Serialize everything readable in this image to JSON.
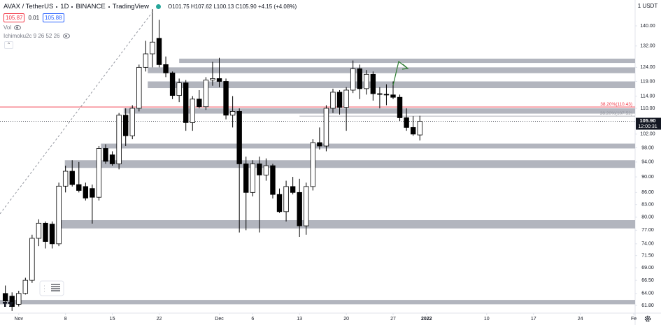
{
  "header": {
    "symbol": "AVAX / TetherUS",
    "interval": "1D",
    "exchange": "BINANCE",
    "source": "TradingView",
    "ohlc": "O101.75 H107.62 L100.13 C105.90 +4.15 (+4.08%)",
    "bid": "105.87",
    "spread": "0.01",
    "ask": "105.88"
  },
  "indicators": [
    "Vol",
    "Ichimoku2c 9 26 52 26"
  ],
  "chart_data": {
    "type": "candlestick",
    "currency": "1 USDT",
    "open": [
      64.0,
      63.5,
      62.0,
      64.0,
      66.5,
      75.2,
      78.6,
      78.4,
      74.0,
      87.6,
      91.5,
      88.0,
      87.5,
      87.0,
      84.8,
      97.8,
      96.0,
      93.5,
      107.8,
      101.5,
      110.0,
      124.0,
      129.0,
      135.0,
      125.0,
      122.0,
      114.2,
      118.5,
      105.5,
      113.0,
      110.5,
      119.5,
      120.0,
      119.0,
      107.8,
      109.0,
      93.5,
      86.0,
      93.5,
      90.5,
      93.0,
      85.5,
      81.3,
      87.5,
      86.0,
      78.0,
      87.5,
      99.5,
      98.5,
      110.0,
      115.3,
      110.3,
      116.0,
      123.5,
      116.5,
      121.5,
      114.8,
      114.6,
      114.4,
      113.6,
      107.0,
      104.0,
      101.75
    ],
    "high": [
      65.5,
      64.2,
      64.5,
      67.0,
      76.0,
      79.5,
      79.0,
      79.0,
      88.5,
      93.0,
      94.5,
      94.0,
      88.5,
      88.0,
      98.5,
      99.0,
      97.0,
      108.5,
      110.0,
      111.0,
      125.0,
      134.0,
      147.0,
      142.5,
      128.0,
      122.5,
      120.0,
      119.5,
      114.0,
      116.0,
      120.5,
      126.0,
      127.5,
      120.0,
      114.0,
      110.0,
      95.5,
      94.5,
      95.5,
      95.0,
      93.5,
      87.0,
      89.0,
      90.0,
      89.5,
      88.5,
      100.5,
      104.0,
      111.0,
      116.5,
      116.0,
      117.0,
      126.5,
      125.0,
      123.0,
      122.5,
      117.0,
      118.0,
      119.0,
      114.5,
      110.0,
      107.5,
      107.62
    ],
    "low": [
      62.3,
      60.8,
      61.6,
      63.8,
      66.0,
      73.5,
      73.0,
      73.0,
      73.5,
      86.0,
      87.5,
      86.0,
      84.0,
      78.5,
      84.0,
      93.5,
      93.0,
      92.0,
      98.5,
      100.5,
      109.0,
      122.5,
      124.0,
      124.0,
      120.5,
      113.0,
      112.0,
      103.0,
      103.0,
      110.0,
      109.5,
      117.5,
      117.0,
      106.5,
      104.0,
      76.5,
      77.0,
      85.0,
      76.5,
      89.0,
      84.5,
      81.0,
      79.0,
      85.5,
      75.5,
      76.0,
      86.5,
      97.5,
      97.0,
      108.5,
      108.0,
      103.0,
      115.0,
      113.0,
      114.5,
      112.5,
      110.0,
      111.0,
      113.0,
      106.0,
      103.0,
      101.5,
      100.13
    ],
    "close": [
      62.6,
      61.6,
      64.0,
      66.5,
      75.2,
      78.6,
      74.5,
      74.0,
      87.6,
      91.5,
      88.0,
      86.5,
      84.6,
      84.8,
      97.8,
      94.2,
      93.5,
      107.8,
      101.5,
      110.0,
      124.0,
      129.0,
      133.5,
      125.0,
      122.0,
      114.2,
      118.5,
      105.5,
      113.0,
      110.5,
      119.5,
      120.0,
      119.0,
      107.8,
      109.0,
      93.5,
      86.0,
      93.5,
      90.5,
      93.0,
      85.5,
      81.3,
      87.5,
      86.0,
      78.0,
      87.5,
      99.5,
      98.5,
      110.0,
      115.3,
      110.3,
      116.0,
      123.5,
      116.5,
      121.5,
      114.8,
      114.6,
      114.4,
      113.6,
      107.0,
      104.0,
      102.0,
      105.9
    ],
    "up_color": "#ffffff",
    "down_color": "#000000",
    "wick_color": "#000000",
    "log_scale": true,
    "xlim": [
      -0.8,
      94.2
    ],
    "xticks": [
      {
        "value": 2,
        "label": "Nov"
      },
      {
        "value": 9,
        "label": "8"
      },
      {
        "value": 16,
        "label": "15"
      },
      {
        "value": 23,
        "label": "22"
      },
      {
        "value": 32,
        "label": "Dec"
      },
      {
        "value": 37,
        "label": "6"
      },
      {
        "value": 44,
        "label": "13"
      },
      {
        "value": 51,
        "label": "20"
      },
      {
        "value": 58,
        "label": "27"
      },
      {
        "value": 63,
        "label": "2022"
      },
      {
        "value": 72,
        "label": "10"
      },
      {
        "value": 79,
        "label": "17"
      },
      {
        "value": 86,
        "label": "24"
      },
      {
        "value": 94,
        "label": "Fe"
      }
    ],
    "ylim": [
      60.42,
      151
    ],
    "yticks": [
      {
        "value": 140,
        "label": "140.00"
      },
      {
        "value": 132,
        "label": "132.00"
      },
      {
        "value": 124,
        "label": "124.00"
      },
      {
        "value": 119,
        "label": "119.00"
      },
      {
        "value": 114,
        "label": "114.00"
      },
      {
        "value": 110,
        "label": "110.00"
      },
      {
        "value": 102,
        "label": "102.00"
      },
      {
        "value": 98,
        "label": "98.00"
      },
      {
        "value": 94,
        "label": "94.00"
      },
      {
        "value": 90,
        "label": "90.00"
      },
      {
        "value": 86,
        "label": "86.00"
      },
      {
        "value": 83,
        "label": "83.00"
      },
      {
        "value": 80,
        "label": "80.00"
      },
      {
        "value": 77,
        "label": "77.00"
      },
      {
        "value": 74,
        "label": "74.00"
      },
      {
        "value": 71.5,
        "label": "71.50"
      },
      {
        "value": 69,
        "label": "69.00"
      },
      {
        "value": 66.5,
        "label": "66.50"
      },
      {
        "value": 64,
        "label": "64.00"
      },
      {
        "value": 61.8,
        "label": "61.80"
      }
    ],
    "zones": [
      {
        "from": 26,
        "low": 125.6,
        "high": 127.2
      },
      {
        "from": 21.3,
        "low": 121.9,
        "high": 124
      },
      {
        "from": 21.3,
        "low": 116.7,
        "high": 119
      },
      {
        "from": 17.7,
        "low": 108.3,
        "high": 110
      },
      {
        "from": 14.3,
        "low": 97.8,
        "high": 99.2
      },
      {
        "from": 8.9,
        "low": 92.4,
        "high": 94.5
      },
      {
        "from": 8,
        "low": 77.4,
        "high": 79.3
      },
      {
        "from": -0.8,
        "low": 62.0,
        "high": 62.8
      }
    ],
    "zone_color": "#b2b5be",
    "fib_levels": [
      {
        "from": -0.8,
        "value": 110.43,
        "label": "38.20%(110.43)",
        "color": "#f23645"
      },
      {
        "from": 44,
        "value": 107.52,
        "label": "38.20%(107.52)",
        "color": "#9598a1"
      }
    ],
    "last_price": {
      "value": 105.9,
      "label": "105.90",
      "countdown": "12:00:31"
    }
  }
}
